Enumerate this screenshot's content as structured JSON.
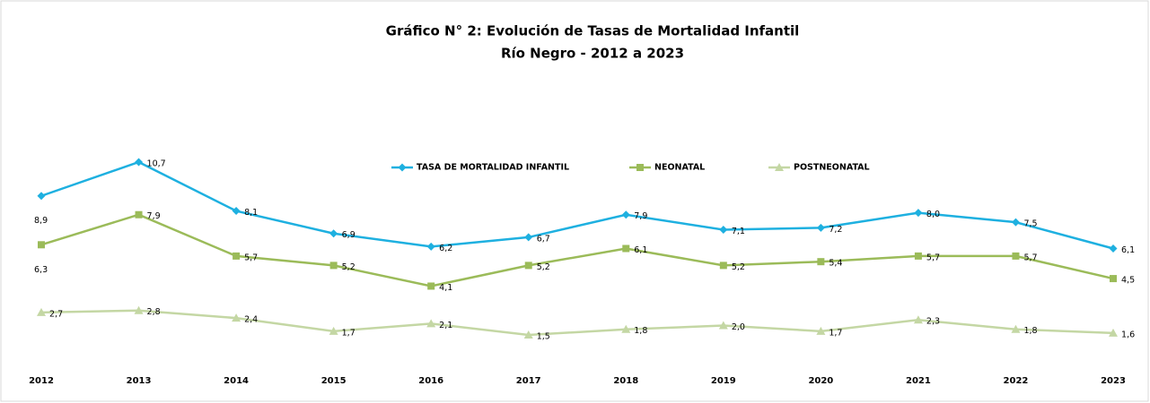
{
  "chart_data": {
    "type": "line",
    "title": "Gráfico N° 2: Evolución de Tasas de Mortalidad Infantil",
    "subtitle": "Río Negro - 2012 a 2023",
    "categories": [
      "2012",
      "2013",
      "2014",
      "2015",
      "2016",
      "2017",
      "2018",
      "2019",
      "2020",
      "2021",
      "2022",
      "2023"
    ],
    "ylim": [
      0,
      12
    ],
    "series": [
      {
        "name": "TASA DE MORTALIDAD INFANTIL",
        "color": "#1eb0e0",
        "marker": "diamond",
        "values": [
          8.9,
          10.7,
          8.1,
          6.9,
          6.2,
          6.7,
          7.9,
          7.1,
          7.2,
          8.0,
          7.5,
          6.1
        ],
        "value_labels": [
          "8,9",
          "10,7",
          "8,1",
          "6,9",
          "6,2",
          "6,7",
          "7,9",
          "7,1",
          "7,2",
          "8,0",
          "7,5",
          "6,1"
        ]
      },
      {
        "name": "NEONATAL",
        "color": "#9bbb59",
        "marker": "square",
        "values": [
          6.3,
          7.9,
          5.7,
          5.2,
          4.1,
          5.2,
          6.1,
          5.2,
          5.4,
          5.7,
          5.7,
          4.5
        ],
        "value_labels": [
          "6,3",
          "7,9",
          "5,7",
          "5,2",
          "4,1",
          "5,2",
          "6,1",
          "5,2",
          "5,4",
          "5,7",
          "5,7",
          "4,5"
        ]
      },
      {
        "name": "POSTNEONATAL",
        "color": "#c4d7a4",
        "marker": "triangle",
        "values": [
          2.7,
          2.8,
          2.4,
          1.7,
          2.1,
          1.5,
          1.8,
          2.0,
          1.7,
          2.3,
          1.8,
          1.6
        ],
        "value_labels": [
          "2,7",
          "2,8",
          "2,4",
          "1,7",
          "2,1",
          "1,5",
          "1,8",
          "2,0",
          "1,7",
          "2,3",
          "1,8",
          "1,6"
        ]
      }
    ]
  }
}
